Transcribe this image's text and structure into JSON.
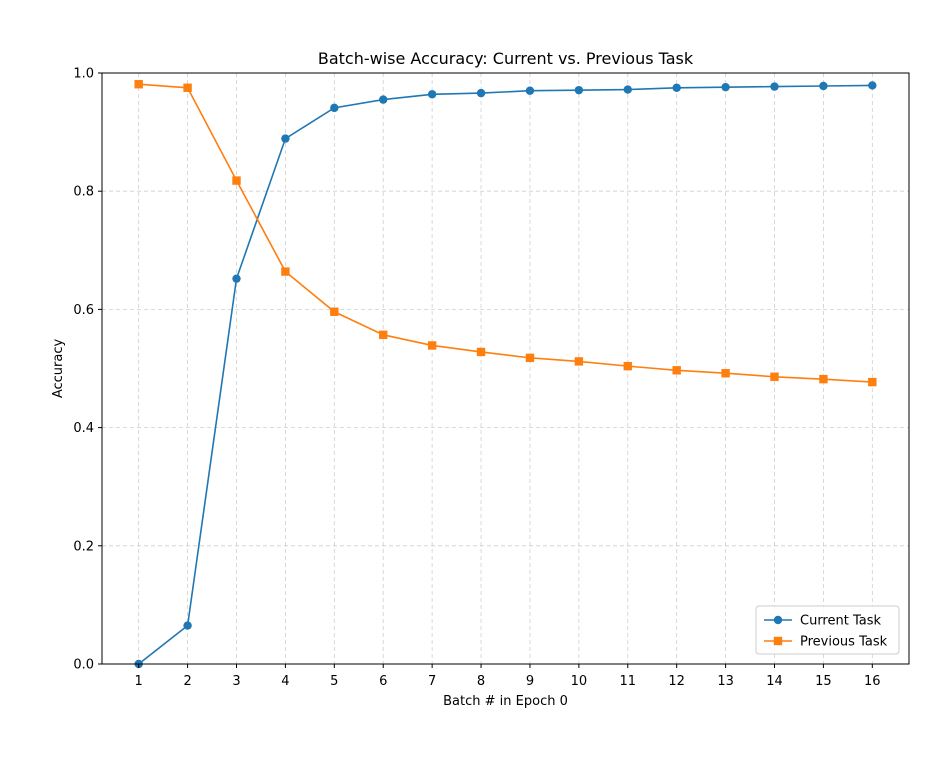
{
  "chart_data": {
    "type": "line",
    "title": "Batch-wise Accuracy: Current vs. Previous Task",
    "xlabel": "Batch # in Epoch 0",
    "ylabel": "Accuracy",
    "x": [
      1,
      2,
      3,
      4,
      5,
      6,
      7,
      8,
      9,
      10,
      11,
      12,
      13,
      14,
      15,
      16
    ],
    "x_ticks": [
      "1",
      "2",
      "3",
      "4",
      "5",
      "6",
      "7",
      "8",
      "9",
      "10",
      "11",
      "12",
      "13",
      "14",
      "15",
      "16"
    ],
    "xlim": [
      0.25,
      16.75
    ],
    "ylim": [
      0.0,
      1.0
    ],
    "y_ticks": [
      "0.0",
      "0.2",
      "0.4",
      "0.6",
      "0.8",
      "1.0"
    ],
    "grid": true,
    "legend_position": "bottom-right",
    "series": [
      {
        "name": "Current Task",
        "color": "#1f77b4",
        "marker": "circle",
        "values": [
          0.0,
          0.065,
          0.652,
          0.889,
          0.941,
          0.955,
          0.964,
          0.966,
          0.97,
          0.971,
          0.972,
          0.975,
          0.976,
          0.977,
          0.978,
          0.979
        ]
      },
      {
        "name": "Previous Task",
        "color": "#ff7f0e",
        "marker": "square",
        "values": [
          0.981,
          0.975,
          0.818,
          0.664,
          0.596,
          0.557,
          0.539,
          0.528,
          0.518,
          0.512,
          0.504,
          0.497,
          0.492,
          0.486,
          0.482,
          0.477
        ]
      }
    ]
  }
}
